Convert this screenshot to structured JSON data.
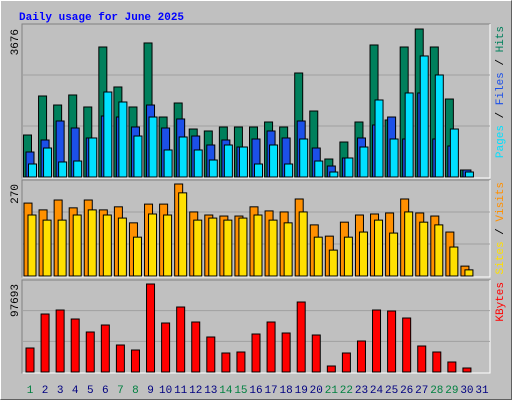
{
  "chart_data": [
    {
      "type": "bar",
      "title": "Daily usage for June 2025",
      "categories": [
        "1",
        "2",
        "3",
        "4",
        "5",
        "6",
        "7",
        "8",
        "9",
        "10",
        "11",
        "12",
        "13",
        "14",
        "15",
        "16",
        "17",
        "18",
        "19",
        "20",
        "21",
        "22",
        "23",
        "24",
        "25",
        "26",
        "27",
        "28",
        "29",
        "30",
        "31"
      ],
      "category_colors": [
        "#008040",
        "#000080",
        "#000080",
        "#000080",
        "#000080",
        "#000080",
        "#008040",
        "#008040",
        "#000080",
        "#000080",
        "#000080",
        "#000080",
        "#000080",
        "#008040",
        "#008040",
        "#000080",
        "#000080",
        "#000080",
        "#000080",
        "#000080",
        "#008040",
        "#008040",
        "#000080",
        "#000080",
        "#000080",
        "#000080",
        "#000080",
        "#008040",
        "#008040",
        "#000080",
        "#000080"
      ],
      "legend_separator": " / ",
      "ylim": [
        0,
        3676
      ],
      "yticks": [
        3676
      ],
      "grid": true,
      "series": [
        {
          "name": "Hits",
          "color": "#00805c",
          "values": [
            1043,
            2012,
            1788,
            2037,
            1739,
            3229,
            2236,
            1739,
            3329,
            1490,
            1838,
            1192,
            1143,
            1242,
            1242,
            1242,
            1366,
            1242,
            2583,
            1639,
            447,
            869,
            1366,
            3279,
            1416,
            3229,
            3676,
            3229,
            1937,
            174,
            0
          ]
        },
        {
          "name": "Files",
          "color": "#1c50e8",
          "values": [
            621,
            919,
            1391,
            1217,
            969,
            1515,
            1490,
            1242,
            1788,
            1217,
            1441,
            1018,
            795,
            919,
            745,
            944,
            1143,
            969,
            1391,
            720,
            273,
            472,
            969,
            1292,
            1490,
            944,
            2087,
            944,
            770,
            174,
            0
          ]
        },
        {
          "name": "Pages",
          "color": "#00e0ff",
          "values": [
            323,
            720,
            373,
            397,
            969,
            2111,
            1863,
            1018,
            1490,
            671,
            994,
            671,
            422,
            795,
            745,
            323,
            795,
            323,
            944,
            397,
            124,
            472,
            745,
            1913,
            944,
            2087,
            3006,
            2534,
            1192,
            124,
            0
          ]
        }
      ]
    },
    {
      "type": "bar",
      "legend_separator": " / ",
      "ylim": [
        0,
        270
      ],
      "yticks": [
        270
      ],
      "grid": true,
      "series": [
        {
          "name": "Visits",
          "color": "#ff9000",
          "values": [
            214,
            194,
            223,
            200,
            223,
            194,
            203,
            156,
            211,
            211,
            270,
            188,
            179,
            176,
            176,
            203,
            191,
            188,
            226,
            150,
            117,
            158,
            179,
            182,
            185,
            226,
            185,
            176,
            129,
            29,
            0
          ]
        },
        {
          "name": "Sites",
          "color": "#ffe000",
          "values": [
            179,
            164,
            164,
            179,
            194,
            179,
            170,
            114,
            182,
            179,
            244,
            164,
            170,
            164,
            170,
            179,
            164,
            156,
            188,
            114,
            76,
            114,
            129,
            164,
            126,
            188,
            158,
            150,
            85,
            18,
            0
          ]
        }
      ]
    },
    {
      "type": "bar",
      "ylim": [
        0,
        97693
      ],
      "yticks": [
        97693
      ],
      "grid": true,
      "series": [
        {
          "name": "KBytes",
          "color": "#ff0000",
          "values": [
            26640,
            64380,
            68820,
            58830,
            44400,
            52170,
            29970,
            24420,
            97693,
            54390,
            72150,
            55500,
            38850,
            21090,
            22200,
            42180,
            55500,
            43290,
            77700,
            41070,
            6660,
            21090,
            34410,
            68820,
            67710,
            59940,
            28860,
            22200,
            11100,
            4440,
            0
          ]
        }
      ]
    }
  ]
}
